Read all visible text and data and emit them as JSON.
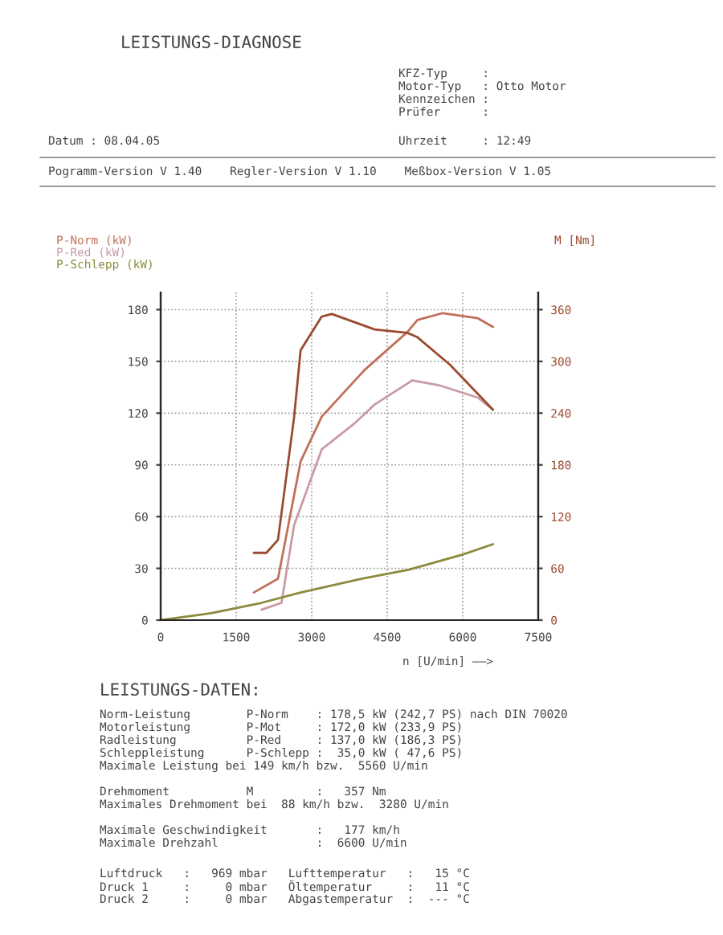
{
  "chart_data": {
    "type": "line",
    "title": "LEISTUNGS-DIAGNOSE",
    "subtitle": "LEISTUNGS-DATEN:",
    "xlabel": "n [U/min] ——>",
    "xlim": [
      0,
      7500
    ],
    "xticks": [
      0,
      1500,
      3000,
      4500,
      6000,
      7500
    ],
    "ylim": [
      0,
      190
    ],
    "yticks": [
      0,
      30,
      60,
      90,
      120,
      150,
      180
    ],
    "y2lim": [
      0,
      380
    ],
    "y2ticks": [
      0,
      60,
      120,
      180,
      240,
      300,
      360
    ],
    "grid": true,
    "marker": "none",
    "line_style": "solid",
    "series": [
      {
        "name": "P-Norm (kW)",
        "color": "#c0705a",
        "x": [
          1850,
          2330,
          2780,
          3200,
          4050,
          4900,
          5100,
          5600,
          6300,
          6600
        ],
        "values": [
          16,
          24,
          92,
          118,
          145,
          167,
          174,
          178,
          175,
          170
        ]
      },
      {
        "name": "P-Red (kW)",
        "color": "#c99aa4",
        "x": [
          2000,
          2400,
          2650,
          3200,
          3850,
          4250,
          5000,
          5550,
          6300,
          6600
        ],
        "values": [
          6,
          10,
          55,
          99,
          114,
          125,
          139,
          136,
          129,
          122
        ]
      },
      {
        "name": "P-Schlepp (kW)",
        "color": "#8c8a3c",
        "x": [
          0,
          1000,
          2000,
          2780,
          4000,
          4900,
          6000,
          6600
        ],
        "values": [
          0,
          4,
          10,
          16,
          24,
          29,
          38,
          44
        ]
      },
      {
        "name": "M [Nm]",
        "color": "#9a4a30",
        "axis": "y2",
        "x": [
          1850,
          2100,
          2330,
          2650,
          2780,
          3200,
          3400,
          4250,
          4900,
          5100,
          5750,
          6600
        ],
        "values": [
          78,
          78,
          93,
          235,
          313,
          352,
          355,
          337,
          333,
          328,
          296,
          244
        ]
      }
    ],
    "annotations": [
      "KFZ-Typ     :",
      "Motor-Typ   : Otto Motor",
      "Kennzeichen :",
      "Prüfer      :",
      "Datum : 08.04.05",
      "Uhrzeit     : 12:49",
      "Pogramm-Version V 1.40    Regler-Version V 1.10    Meßbox-Version V 1.05",
      "Norm-Leistung        P-Norm    : 178,5 kW (242,7 PS) nach DIN 70020",
      "Motorleistung        P-Mot     : 172,0 kW (233,9 PS)",
      "Radleistung          P-Red     : 137,0 kW (186,3 PS)",
      "Schleppleistung      P-Schlepp :  35,0 kW ( 47,6 PS)",
      "Maximale Leistung bei 149 km/h bzw.  5560 U/min",
      "Drehmoment           M         :   357 Nm",
      "Maximales Drehmoment bei  88 km/h bzw.  3280 U/min",
      "Maximale Geschwindigkeit       :   177 km/h",
      "Maximale Drehzahl              :  6600 U/min",
      "Luftdruck   :   969 mbar   Lufttemperatur   :   15 °C",
      "Druck 1     :     0 mbar   Öltemperatur     :   11 °C",
      "Druck 2     :     0 mbar   Abgastemperatur  :  --- °C"
    ]
  }
}
